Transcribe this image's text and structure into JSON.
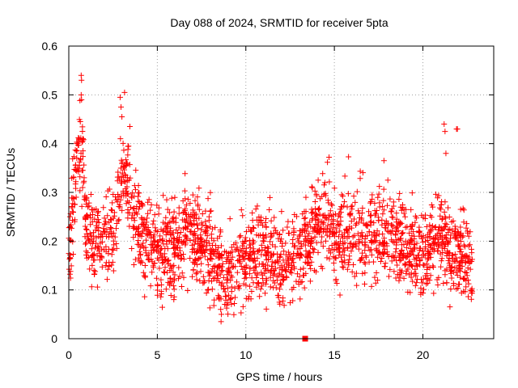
{
  "chart_data": {
    "type": "scatter",
    "title": "Day 088 of 2024, SRMTID for receiver 5pta",
    "xlabel": "GPS time / hours",
    "ylabel": "SRMTID / TECUs",
    "xlim": [
      0,
      24
    ],
    "ylim": [
      0,
      0.6
    ],
    "xticks": [
      0,
      5,
      10,
      15,
      20
    ],
    "yticks": [
      0,
      0.1,
      0.2,
      0.3,
      0.4,
      0.5,
      0.6
    ],
    "xtick_labels": [
      "0",
      "5",
      "10",
      "15",
      "20"
    ],
    "ytick_labels": [
      "0",
      "0.1",
      "0.2",
      "0.3",
      "0.4",
      "0.5",
      "0.6"
    ],
    "grid": true,
    "marker": "plus",
    "color": "#ff0000",
    "series": [
      {
        "name": "SRMTID",
        "trend": [
          [
            0.0,
            0.18
          ],
          [
            0.3,
            0.3
          ],
          [
            0.6,
            0.38
          ],
          [
            0.8,
            0.36
          ],
          [
            1.0,
            0.22
          ],
          [
            1.5,
            0.2
          ],
          [
            2.0,
            0.2
          ],
          [
            2.5,
            0.22
          ],
          [
            3.0,
            0.33
          ],
          [
            3.3,
            0.32
          ],
          [
            3.6,
            0.24
          ],
          [
            4.0,
            0.22
          ],
          [
            4.5,
            0.19
          ],
          [
            5.0,
            0.18
          ],
          [
            6.0,
            0.19
          ],
          [
            7.0,
            0.22
          ],
          [
            8.0,
            0.18
          ],
          [
            8.5,
            0.15
          ],
          [
            9.0,
            0.13
          ],
          [
            10.0,
            0.16
          ],
          [
            11.0,
            0.17
          ],
          [
            12.0,
            0.15
          ],
          [
            13.0,
            0.18
          ],
          [
            13.5,
            0.2
          ],
          [
            14.0,
            0.24
          ],
          [
            14.5,
            0.25
          ],
          [
            15.0,
            0.2
          ],
          [
            16.0,
            0.21
          ],
          [
            17.0,
            0.22
          ],
          [
            18.0,
            0.22
          ],
          [
            19.0,
            0.2
          ],
          [
            20.0,
            0.17
          ],
          [
            20.5,
            0.2
          ],
          [
            21.0,
            0.22
          ],
          [
            21.5,
            0.18
          ],
          [
            22.0,
            0.18
          ],
          [
            22.5,
            0.15
          ],
          [
            22.8,
            0.14
          ]
        ],
        "spikes": [
          [
            0.7,
            0.54
          ],
          [
            0.72,
            0.53
          ],
          [
            0.7,
            0.5
          ],
          [
            0.72,
            0.49
          ],
          [
            0.65,
            0.445
          ],
          [
            0.8,
            0.41
          ],
          [
            0.45,
            0.4
          ],
          [
            3.15,
            0.505
          ],
          [
            2.9,
            0.495
          ],
          [
            2.95,
            0.475
          ],
          [
            3.0,
            0.455
          ],
          [
            3.45,
            0.435
          ],
          [
            21.2,
            0.44
          ],
          [
            21.25,
            0.425
          ],
          [
            21.9,
            0.43
          ],
          [
            21.95,
            0.43
          ],
          [
            21.3,
            0.38
          ],
          [
            15.8,
            0.373
          ],
          [
            14.7,
            0.372
          ],
          [
            17.8,
            0.365
          ],
          [
            8.6,
            0.035
          ],
          [
            8.62,
            0.05
          ],
          [
            8.58,
            0.06
          ]
        ]
      },
      {
        "name": "marker",
        "points": [
          [
            13.35,
            0.0
          ]
        ]
      }
    ]
  }
}
